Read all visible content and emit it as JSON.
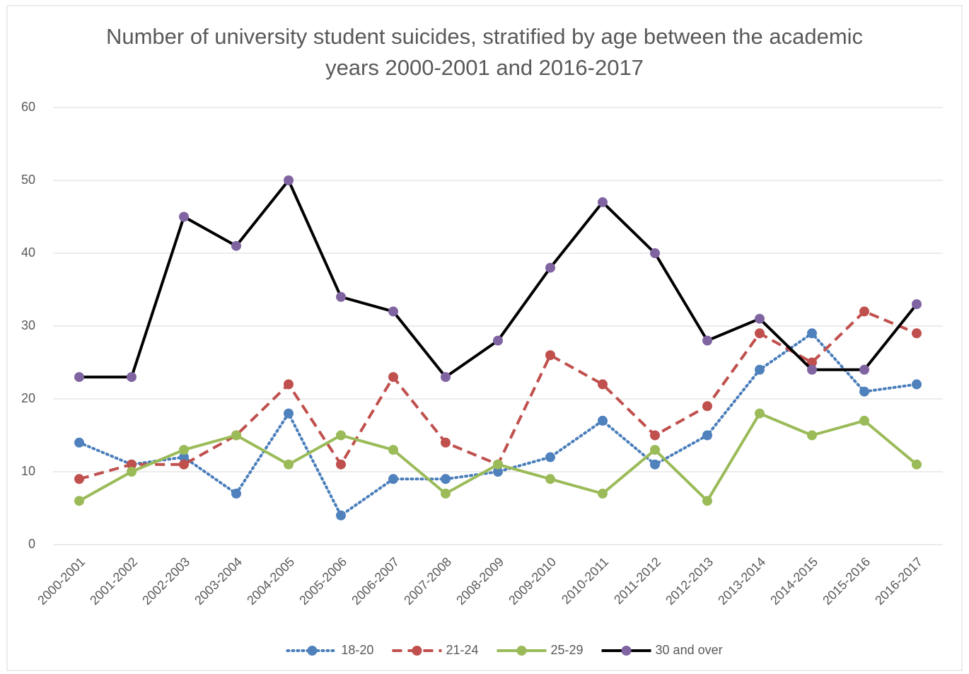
{
  "chart_data": {
    "type": "line",
    "title": "Number of university student suicides, stratified by age between the academic years 2000-2001 and 2016-2017",
    "categories": [
      "2000-2001",
      "2001-2002",
      "2002-2003",
      "2003-2004",
      "2004-2005",
      "2005-2006",
      "2006-2007",
      "2007-2008",
      "2008-2009",
      "2009-2010",
      "2010-2011",
      "2011-2012",
      "2012-2013",
      "2013-2014",
      "2014-2015",
      "2015-2016",
      "2016-2017"
    ],
    "series": [
      {
        "name": "18-20",
        "color": "#4a7ebb",
        "marker_color": "#4f81bd",
        "dash": "dotted",
        "values": [
          14,
          11,
          12,
          7,
          18,
          4,
          9,
          9,
          10,
          12,
          17,
          11,
          15,
          24,
          29,
          21,
          22
        ]
      },
      {
        "name": "21-24",
        "color": "#c0504d",
        "marker_color": "#c0504d",
        "dash": "dashed",
        "values": [
          9,
          11,
          11,
          15,
          22,
          11,
          23,
          14,
          11,
          26,
          22,
          15,
          19,
          29,
          25,
          32,
          29
        ]
      },
      {
        "name": "25-29",
        "color": "#9bbb59",
        "marker_color": "#9bbb59",
        "dash": "solid",
        "values": [
          6,
          10,
          13,
          15,
          11,
          15,
          13,
          7,
          11,
          9,
          7,
          13,
          6,
          18,
          15,
          17,
          11
        ]
      },
      {
        "name": "30 and over",
        "color": "#000000",
        "marker_color": "#8064a2",
        "dash": "solid",
        "values": [
          23,
          23,
          45,
          41,
          50,
          34,
          32,
          23,
          28,
          38,
          47,
          40,
          28,
          31,
          24,
          24,
          33
        ]
      }
    ],
    "ylim": [
      0,
      60
    ],
    "yticks": [
      0,
      10,
      20,
      30,
      40,
      50,
      60
    ],
    "grid": true,
    "legend": "bottom"
  }
}
